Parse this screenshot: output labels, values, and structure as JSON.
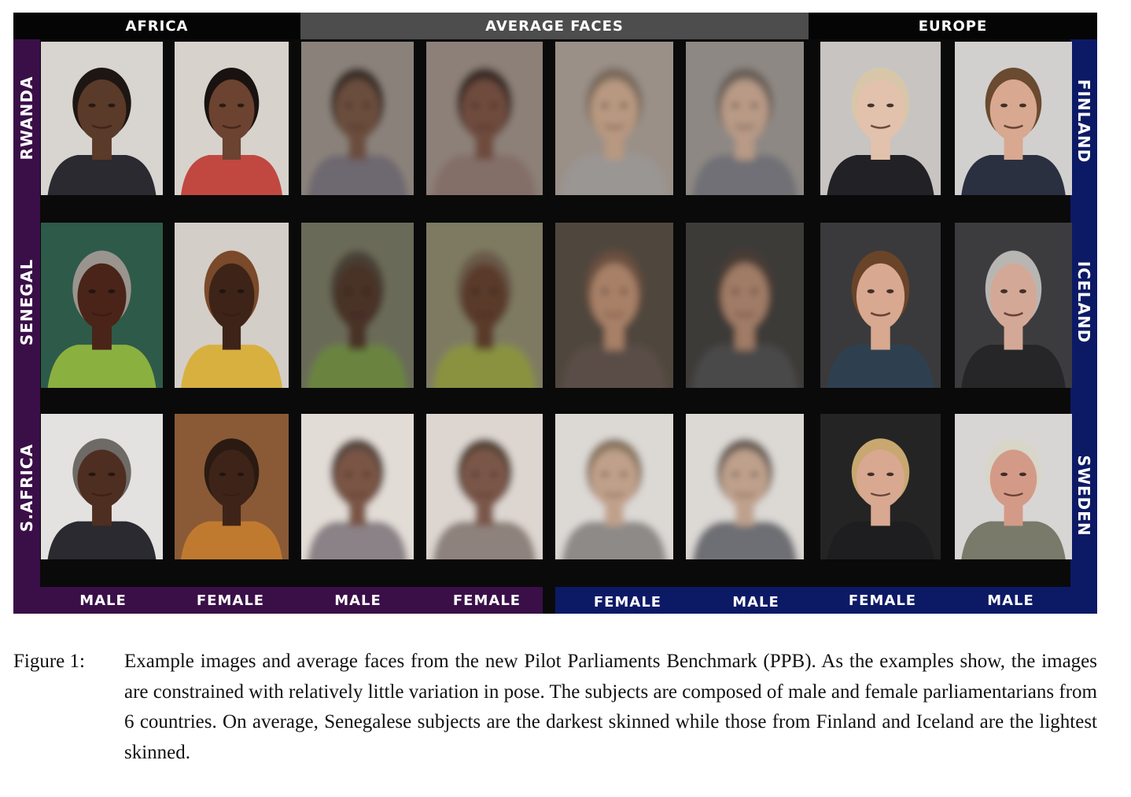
{
  "figure": {
    "headers": {
      "africa": "AFRICA",
      "average": "AVERAGE FACES",
      "europe": "EUROPE"
    },
    "left_labels": [
      "RWANDA",
      "SENEGAL",
      "S.AFRICA"
    ],
    "right_labels": [
      "FINLAND",
      "ICELAND",
      "SWEDEN"
    ],
    "bottom_labels": [
      "MALE",
      "FEMALE",
      "MALE",
      "FEMALE",
      "FEMALE",
      "MALE",
      "FEMALE",
      "MALE"
    ],
    "colors": {
      "purple": "#3a0f48",
      "navy": "#0c1a66",
      "gray_header": "#4d4d4d",
      "black": "#0a0a0a"
    },
    "photos": [
      {
        "label": "rwanda-male-portrait",
        "skin": "#5a3a28",
        "hair": "#1e1612",
        "bg": "#d8d4d0",
        "cloth": "#2a2a30",
        "blur": 0
      },
      {
        "label": "rwanda-female-portrait",
        "skin": "#6b4330",
        "hair": "#1a1210",
        "bg": "#d8d2cc",
        "cloth": "#c04840",
        "blur": 0
      },
      {
        "label": "rwanda-male-average",
        "skin": "#6a4e3e",
        "hair": "#3a2e28",
        "bg": "#8a827a",
        "cloth": "#6e6870",
        "blur": 3
      },
      {
        "label": "rwanda-female-average",
        "skin": "#6e4c3c",
        "hair": "#3a2c26",
        "bg": "#8c8078",
        "cloth": "#846e68",
        "blur": 3
      },
      {
        "label": "finland-female-average",
        "skin": "#b89880",
        "hair": "#7a6a5c",
        "bg": "#9a9088",
        "cloth": "#9a9694",
        "blur": 3
      },
      {
        "label": "finland-male-average",
        "skin": "#b89a86",
        "hair": "#6a6058",
        "bg": "#8e8884",
        "cloth": "#707076",
        "blur": 3
      },
      {
        "label": "finland-female-portrait",
        "skin": "#e2c2ac",
        "hair": "#d8c6a8",
        "bg": "#c8c4c2",
        "cloth": "#222226",
        "blur": 0
      },
      {
        "label": "finland-male-portrait",
        "skin": "#d8a890",
        "hair": "#6a4a30",
        "bg": "#d2d0ce",
        "cloth": "#2a3040",
        "blur": 0
      },
      {
        "label": "senegal-male-portrait",
        "skin": "#4a2418",
        "hair": "#9a948e",
        "bg": "#2e5a4a",
        "cloth": "#8ab040",
        "blur": 0
      },
      {
        "label": "senegal-female-portrait",
        "skin": "#3e2418",
        "hair": "#7a4a2a",
        "bg": "#d4cec8",
        "cloth": "#d8b040",
        "blur": 0
      },
      {
        "label": "senegal-male-average",
        "skin": "#4a3028",
        "hair": "#4a4036",
        "bg": "#6a6a58",
        "cloth": "#6a8440",
        "blur": 3
      },
      {
        "label": "senegal-female-average",
        "skin": "#5a3a2c",
        "hair": "#6a5a48",
        "bg": "#7e7a62",
        "cloth": "#8a9240",
        "blur": 3
      },
      {
        "label": "iceland-female-average",
        "skin": "#a88068",
        "hair": "#6a5040",
        "bg": "#50463e",
        "cloth": "#5a4e46",
        "blur": 3
      },
      {
        "label": "iceland-male-average",
        "skin": "#a07c66",
        "hair": "#4a3e36",
        "bg": "#3e3a38",
        "cloth": "#4a4848",
        "blur": 3
      },
      {
        "label": "iceland-female-portrait",
        "skin": "#d8a890",
        "hair": "#6a4428",
        "bg": "#3a3a3c",
        "cloth": "#2e4050",
        "blur": 0
      },
      {
        "label": "iceland-male-portrait",
        "skin": "#d4a896",
        "hair": "#b8b6b2",
        "bg": "#3c3c3e",
        "cloth": "#262628",
        "blur": 0
      },
      {
        "label": "safrica-male-portrait",
        "skin": "#4e2e20",
        "hair": "#6e6a66",
        "bg": "#e4e2e0",
        "cloth": "#2a2a30",
        "blur": 0
      },
      {
        "label": "safrica-female-portrait",
        "skin": "#3e2418",
        "hair": "#2a1a12",
        "bg": "#8a5a36",
        "cloth": "#c07a30",
        "blur": 0
      },
      {
        "label": "safrica-male-average",
        "skin": "#7a5444",
        "hair": "#5a4a40",
        "bg": "#e2dcd6",
        "cloth": "#8a8286",
        "blur": 3
      },
      {
        "label": "safrica-female-average",
        "skin": "#7a5648",
        "hair": "#5a4638",
        "bg": "#ddd6d0",
        "cloth": "#8e827c",
        "blur": 3
      },
      {
        "label": "sweden-female-average",
        "skin": "#c0a08a",
        "hair": "#8a7660",
        "bg": "#dcd8d4",
        "cloth": "#8e8a88",
        "blur": 3
      },
      {
        "label": "sweden-male-average",
        "skin": "#bea08c",
        "hair": "#6e6258",
        "bg": "#dcd8d4",
        "cloth": "#6e6e74",
        "blur": 3
      },
      {
        "label": "sweden-female-portrait",
        "skin": "#d8a890",
        "hair": "#c8a870",
        "bg": "#242424",
        "cloth": "#1e1e20",
        "blur": 0
      },
      {
        "label": "sweden-male-portrait",
        "skin": "#d49a88",
        "hair": "#d8d6c8",
        "bg": "#d8d6d4",
        "cloth": "#7a7a6a",
        "blur": 0
      }
    ]
  },
  "caption": {
    "label": "Figure 1:",
    "text": "Example images and average faces from the new Pilot Parliaments Benchmark (PPB). As the examples show, the images are constrained with relatively little variation in pose. The subjects are composed of male and female parliamentarians from 6 countries. On average, Senegalese subjects are the darkest skinned while those from Finland and Iceland are the lightest skinned."
  }
}
